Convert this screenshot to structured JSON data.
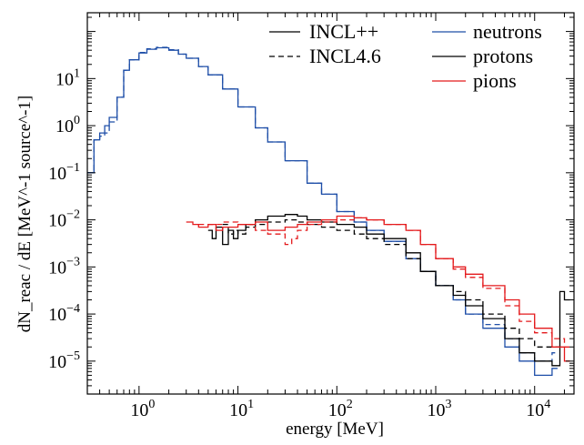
{
  "chart_data": {
    "type": "line",
    "step": true,
    "xlabel": "energy [MeV]",
    "ylabel": "dN_reac / dE [MeV^-1 source^-1]",
    "xscale": "log",
    "yscale": "log",
    "xlim": [
      0.3,
      25000
    ],
    "ylim": [
      2e-06,
      250
    ],
    "grid": false,
    "x_ticks": [
      {
        "value": 1,
        "base": "10",
        "exp": "0"
      },
      {
        "value": 10,
        "base": "10",
        "exp": "1"
      },
      {
        "value": 100,
        "base": "10",
        "exp": "2"
      },
      {
        "value": 1000,
        "base": "10",
        "exp": "3"
      },
      {
        "value": 10000,
        "base": "10",
        "exp": "4"
      }
    ],
    "y_ticks": [
      {
        "value": 1e-05,
        "base": "10",
        "exp": "−5"
      },
      {
        "value": 0.0001,
        "base": "10",
        "exp": "−4"
      },
      {
        "value": 0.001,
        "base": "10",
        "exp": "−3"
      },
      {
        "value": 0.01,
        "base": "10",
        "exp": "−2"
      },
      {
        "value": 0.1,
        "base": "10",
        "exp": "−1"
      },
      {
        "value": 1,
        "base": "10",
        "exp": "0"
      },
      {
        "value": 10,
        "base": "10",
        "exp": "1"
      }
    ],
    "legend_placement": "top-right",
    "legend_models": [
      {
        "label": "INCL++",
        "dash": "solid"
      },
      {
        "label": "INCL4.6",
        "dash": "dashed"
      }
    ],
    "legend_particles": [
      {
        "label": "neutrons",
        "color": "#1f4fa8"
      },
      {
        "label": "protons",
        "color": "#000000"
      },
      {
        "label": "pions",
        "color": "#e41a1c"
      }
    ],
    "series": [
      {
        "model": "INCL++",
        "particle": "neutrons",
        "color": "#1f4fa8",
        "dash": "solid",
        "x": [
          0.3,
          0.35,
          0.4,
          0.45,
          0.5,
          0.6,
          0.7,
          0.8,
          1.0,
          1.2,
          1.5,
          2.0,
          2.5,
          3.0,
          4.0,
          5.0,
          7.0,
          10,
          15,
          20,
          30,
          50,
          70,
          100,
          150,
          200,
          300,
          500,
          700,
          1000,
          1500,
          2000,
          3000,
          5000,
          7000,
          10000,
          15000
        ],
        "y": [
          0.1,
          0.5,
          0.7,
          1.0,
          1.5,
          4.0,
          15,
          25,
          35,
          42,
          45,
          40,
          33,
          27,
          18,
          12,
          6.0,
          2.5,
          0.9,
          0.45,
          0.18,
          0.06,
          0.035,
          0.015,
          0.009,
          0.006,
          0.0035,
          0.0015,
          0.0008,
          0.0004,
          0.0002,
          0.0001,
          5e-05,
          2e-05,
          1e-05,
          5e-06,
          7e-06
        ]
      },
      {
        "model": "INCL4.6",
        "particle": "neutrons",
        "color": "#1f4fa8",
        "dash": "dashed",
        "x": [
          0.3,
          0.35,
          0.4,
          0.45,
          0.5,
          0.6,
          0.7,
          0.8,
          1.0,
          1.2,
          1.5,
          2.0,
          2.5,
          3.0,
          4.0,
          5.0,
          7.0,
          10,
          15,
          20,
          30,
          50,
          70,
          100,
          150,
          200,
          300,
          500,
          700,
          1000,
          1500,
          2000,
          3000,
          5000,
          7000,
          10000,
          15000
        ],
        "y": [
          0.1,
          0.5,
          0.6,
          0.7,
          1.2,
          4.0,
          15,
          25,
          36,
          43,
          46,
          41,
          33,
          27,
          18,
          12,
          6.0,
          2.5,
          0.9,
          0.45,
          0.18,
          0.06,
          0.035,
          0.015,
          0.009,
          0.006,
          0.0035,
          0.0015,
          0.0008,
          0.0004,
          0.0002,
          0.0001,
          6e-05,
          3e-05,
          1.5e-05,
          1e-05,
          1.5e-05
        ]
      },
      {
        "model": "INCL++",
        "particle": "protons",
        "color": "#000000",
        "dash": "solid",
        "x": [
          5,
          5.5,
          6,
          7,
          8,
          9,
          10,
          12,
          15,
          20,
          30,
          40,
          50,
          70,
          100,
          150,
          200,
          300,
          500,
          700,
          1000,
          1500,
          2000,
          3000,
          5000,
          7000,
          10000,
          15000,
          18000,
          20000
        ],
        "y": [
          0.006,
          0.004,
          0.007,
          0.003,
          0.006,
          0.004,
          0.006,
          0.008,
          0.01,
          0.012,
          0.013,
          0.012,
          0.01,
          0.009,
          0.008,
          0.007,
          0.005,
          0.004,
          0.002,
          0.0008,
          0.0004,
          0.00025,
          0.00015,
          8e-05,
          3e-05,
          1.5e-05,
          1e-05,
          8e-06,
          0.0003,
          0.0002
        ]
      },
      {
        "model": "INCL4.6",
        "particle": "protons",
        "color": "#000000",
        "dash": "dashed",
        "x": [
          7,
          8,
          9,
          10,
          12,
          15,
          20,
          30,
          40,
          50,
          70,
          100,
          150,
          200,
          300,
          500,
          700,
          1000,
          1500,
          2000,
          3000,
          5000,
          7000,
          10000,
          15000,
          18000
        ],
        "y": [
          0.008,
          0.005,
          0.006,
          0.005,
          0.007,
          0.008,
          0.009,
          0.01,
          0.009,
          0.008,
          0.007,
          0.006,
          0.005,
          0.004,
          0.003,
          0.0015,
          0.0008,
          0.0004,
          0.0003,
          0.0002,
          0.0001,
          5e-05,
          3e-05,
          2e-05,
          2e-05,
          2e-05
        ]
      },
      {
        "model": "INCL++",
        "particle": "pions",
        "color": "#e41a1c",
        "dash": "solid",
        "x": [
          3,
          3.5,
          4,
          5,
          6,
          7,
          10,
          15,
          20,
          30,
          40,
          50,
          70,
          100,
          150,
          200,
          300,
          500,
          700,
          1000,
          1500,
          2000,
          3000,
          5000,
          7000,
          10000,
          15000,
          20000
        ],
        "y": [
          0.009,
          0.008,
          0.007,
          0.008,
          0.006,
          0.007,
          0.008,
          0.009,
          0.006,
          0.007,
          0.008,
          0.009,
          0.01,
          0.012,
          0.011,
          0.01,
          0.008,
          0.006,
          0.003,
          0.0015,
          0.001,
          0.0007,
          0.0004,
          0.0002,
          0.0001,
          5e-05,
          2e-05,
          1e-05
        ]
      },
      {
        "model": "INCL4.6",
        "particle": "pions",
        "color": "#e41a1c",
        "dash": "dashed",
        "x": [
          4,
          5,
          7,
          10,
          15,
          20,
          30,
          35,
          40,
          50,
          70,
          100,
          150,
          200,
          300,
          500,
          700,
          1000,
          1500,
          2000,
          3000,
          5000,
          7000,
          10000,
          15000,
          20000
        ],
        "y": [
          0.008,
          0.008,
          0.009,
          0.008,
          0.006,
          0.005,
          0.003,
          0.004,
          0.006,
          0.008,
          0.009,
          0.01,
          0.011,
          0.01,
          0.008,
          0.006,
          0.003,
          0.0015,
          0.0009,
          0.0006,
          0.00035,
          0.00015,
          7e-05,
          4e-05,
          3e-05,
          2e-05
        ]
      }
    ]
  }
}
